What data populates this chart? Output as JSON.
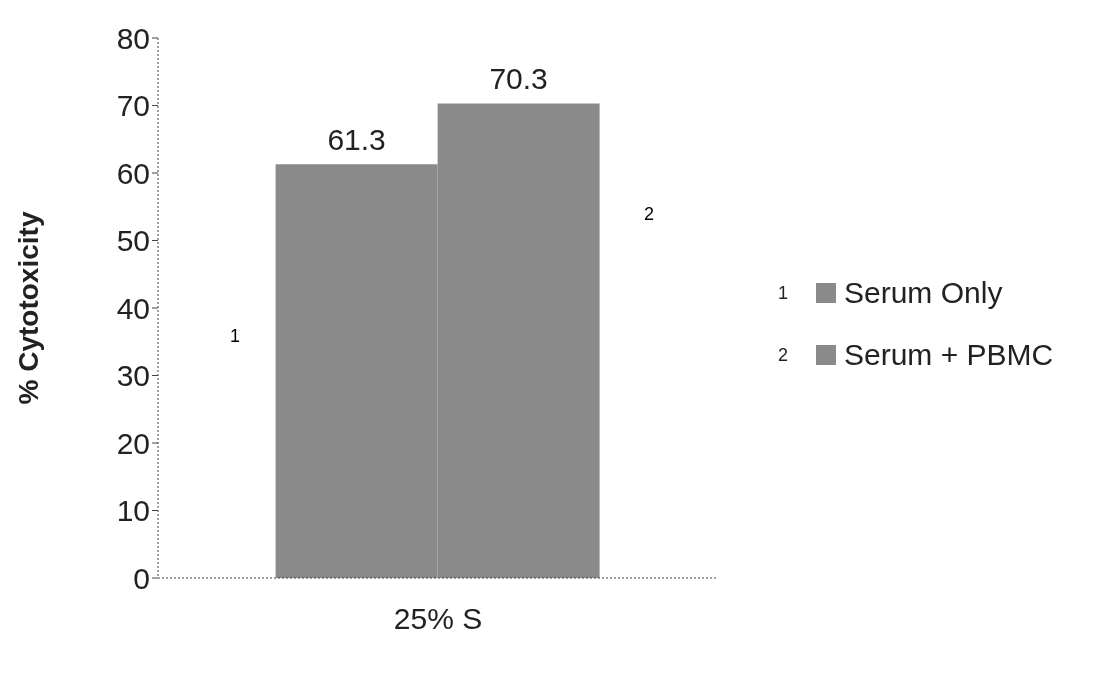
{
  "chart_data": {
    "type": "bar",
    "categories": [
      "25% S"
    ],
    "ylabel": "% Cytotoxicity",
    "series": [
      {
        "name": "Serum Only",
        "color": "#8a8a8a",
        "values": [
          61.3
        ]
      },
      {
        "name": "Serum + PBMC",
        "color": "#8a8a8a",
        "values": [
          70.3
        ]
      }
    ],
    "ylim": [
      0,
      80
    ],
    "yticks": [
      0,
      10,
      20,
      30,
      40,
      50,
      60,
      70,
      80
    ],
    "legend": "right",
    "data_labels": true,
    "annotations": [
      "1",
      "2",
      "1",
      "2"
    ]
  }
}
